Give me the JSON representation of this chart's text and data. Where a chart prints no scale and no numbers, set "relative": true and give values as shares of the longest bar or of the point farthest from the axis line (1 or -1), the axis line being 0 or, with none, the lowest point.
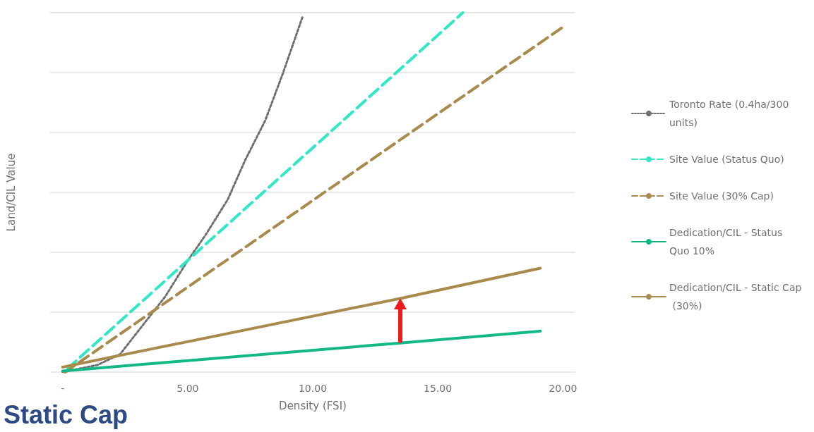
{
  "chart_data": {
    "type": "line",
    "title": "Static Cap",
    "xlabel": "Density (FSI)",
    "ylabel": "Land/CIL Value",
    "relative": true,
    "grid": "y",
    "legend": "right",
    "marker": "none",
    "xlim": [
      -0.5,
      20.5
    ],
    "xticks": [
      {
        "value": 0,
        "label": "-"
      },
      {
        "value": 5,
        "label": "5.00"
      },
      {
        "value": 10,
        "label": "10.00"
      },
      {
        "value": 15,
        "label": "15.00"
      },
      {
        "value": 20,
        "label": "20.00"
      }
    ],
    "series": [
      {
        "name": "Toronto Rate (0.4ha/300 units)",
        "color": "#6e6e70",
        "line_style": "dotted",
        "x": [
          0,
          1.4,
          2.3,
          3.2,
          4.1,
          5.0,
          5.7,
          6.6,
          7.3,
          8.1,
          8.8,
          9.6
        ],
        "values": [
          0,
          0.02,
          0.05,
          0.13,
          0.21,
          0.31,
          0.38,
          0.48,
          0.59,
          0.7,
          0.83,
          0.99
        ]
      },
      {
        "name": "Site Value (Status Quo)",
        "color": "#2ee8c6",
        "line_style": "dashed",
        "x": [
          0.2,
          16.0
        ],
        "values": [
          0.01,
          1.0
        ]
      },
      {
        "name": "Site Value (30% Cap)",
        "color": "#a88b4c",
        "line_style": "dashed",
        "x": [
          0.1,
          20.0
        ],
        "values": [
          0,
          0.96
        ]
      },
      {
        "name": "Dedication/CIL - Status Quo 10%",
        "color": "#14b886",
        "line_style": "solid",
        "x": [
          0,
          13.5,
          19.1
        ],
        "values": [
          0.003,
          0.081,
          0.114
        ]
      },
      {
        "name": "Dedication/CIL - Static Cap (30%)",
        "color": "#a88b4c",
        "line_style": "solid",
        "x": [
          0,
          13.5,
          19.1
        ],
        "values": [
          0.014,
          0.205,
          0.289
        ]
      }
    ]
  }
}
